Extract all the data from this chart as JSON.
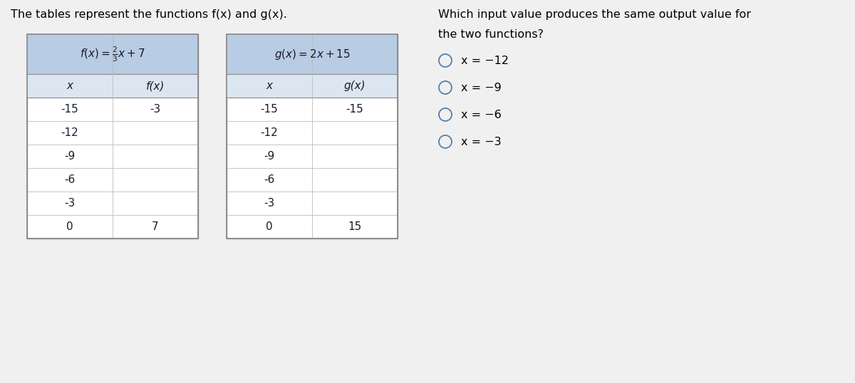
{
  "title_left": "The tables represent the functions f(x) and g(x).",
  "title_right_line1": "Which input value produces the same output value for",
  "title_right_line2": "the two functions?",
  "f_header_formula": "$f(x) = \\frac{2}{3}x+7$",
  "g_header_formula": "$g(x) = 2x+15$",
  "f_col_headers": [
    "x",
    "f(x)"
  ],
  "g_col_headers": [
    "x",
    "g(x)"
  ],
  "f_x_values": [
    "-15",
    "-12",
    "-9",
    "-6",
    "-3",
    "0"
  ],
  "f_fx_values": [
    "-3",
    "",
    "",
    "",
    "",
    "7"
  ],
  "g_x_values": [
    "-15",
    "-12",
    "-9",
    "-6",
    "-3",
    "0"
  ],
  "g_gx_values": [
    "-15",
    "",
    "",
    "",
    "",
    "15"
  ],
  "choices": [
    "x = −12",
    "x = −9",
    "x = −6",
    "x = −3"
  ],
  "header_bg": "#b8cce4",
  "col_header_bg": "#dce6f1",
  "page_bg": "#f0f0f0",
  "table_bg": "#ffffff",
  "text_color": "#1a1a2e",
  "title_color": "#000000",
  "border_color": "#888888",
  "inner_line_color": "#bbbbbb",
  "choice_circle_color": "#5580aa",
  "choice_text_color": "#000000"
}
